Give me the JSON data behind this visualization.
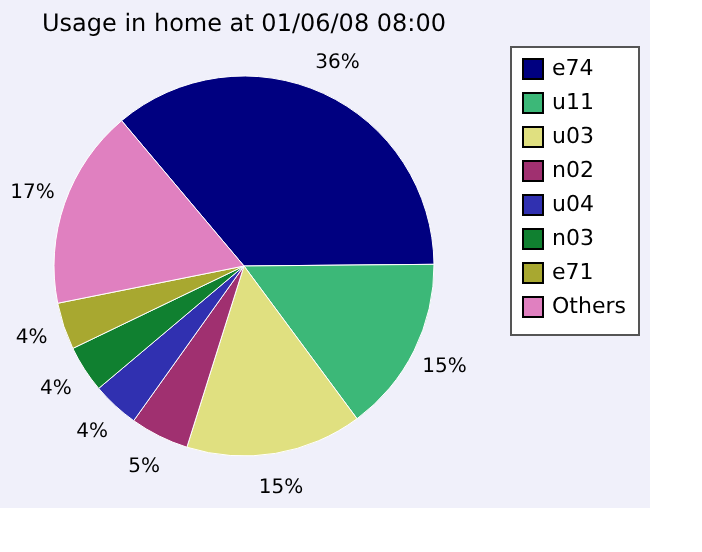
{
  "chart_data": {
    "type": "pie",
    "title": "Usage in home at 01/06/08 08:00",
    "categories": [
      "e74",
      "u11",
      "u03",
      "n02",
      "u04",
      "n03",
      "e71",
      "Others"
    ],
    "values": [
      36,
      15,
      15,
      5,
      4,
      4,
      4,
      17
    ],
    "value_labels": [
      "36%",
      "15%",
      "15%",
      "5%",
      "4%",
      "4%",
      "4%",
      "17%"
    ],
    "colors": [
      "#000080",
      "#3cb878",
      "#e0e080",
      "#a03070",
      "#3030b0",
      "#108030",
      "#a8a830",
      "#e080c0"
    ],
    "legend": "right"
  }
}
